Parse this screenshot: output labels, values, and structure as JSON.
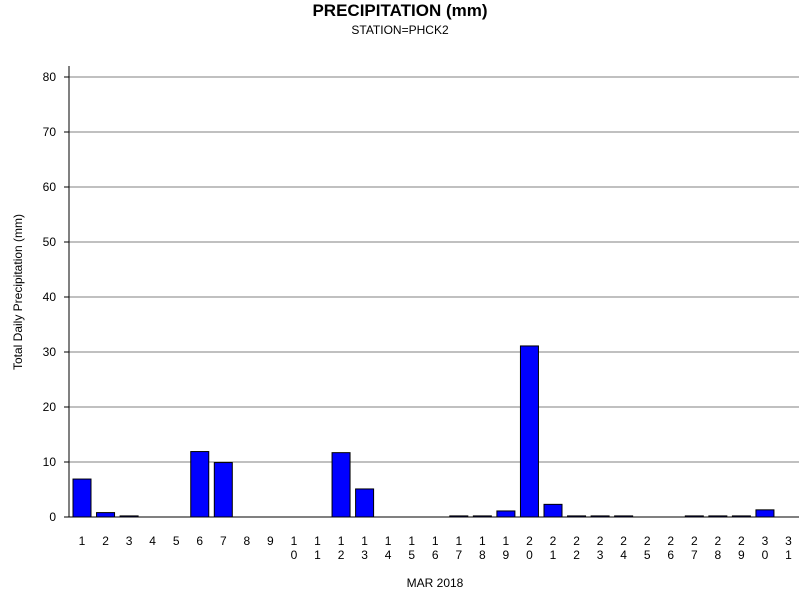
{
  "chart_data": {
    "type": "bar",
    "title": "PRECIPITATION (mm)",
    "subtitle": "STATION=PHCK2",
    "xlabel": "MAR 2018",
    "ylabel": "Total Daily Precipitation (mm)",
    "ylim": [
      0,
      80
    ],
    "yticks": [
      0,
      10,
      20,
      30,
      40,
      50,
      60,
      70,
      80
    ],
    "grid": true,
    "bar_color": "#0000ff",
    "categories": [
      "1",
      "2",
      "3",
      "4",
      "5",
      "6",
      "7",
      "8",
      "9",
      "10",
      "11",
      "12",
      "13",
      "14",
      "15",
      "16",
      "17",
      "18",
      "19",
      "20",
      "21",
      "22",
      "23",
      "24",
      "25",
      "26",
      "27",
      "28",
      "29",
      "30",
      "31"
    ],
    "values": [
      6.9,
      0.8,
      0.2,
      0,
      0,
      11.9,
      9.9,
      0,
      0,
      0,
      0,
      11.7,
      5.1,
      0,
      0,
      0,
      0.2,
      0.2,
      1.1,
      31.1,
      2.3,
      0.2,
      0.2,
      0.2,
      0,
      0,
      0.2,
      0.2,
      0.2,
      1.3,
      0
    ]
  }
}
